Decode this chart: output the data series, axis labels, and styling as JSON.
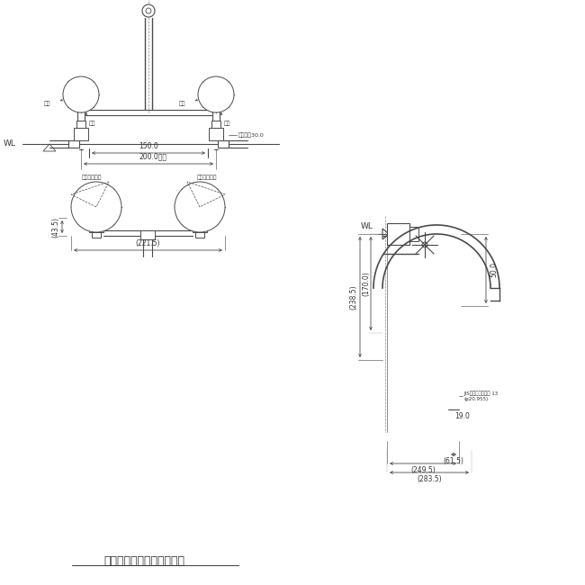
{
  "bg_color": "#ffffff",
  "line_color": "#4a4a4a",
  "text_color": "#333333",
  "title_text": "取付芯々２００ｍｍの場合",
  "wl_label": "WL",
  "dim_200": "200.0内外",
  "dim_150": "150.0",
  "dim_30": "大角対辺30.0",
  "dim_221": "(221.5)",
  "dim_43": "(43.5)",
  "dim_238": "(238.5)",
  "dim_170": "(170.0)",
  "dim_249": "(249.5)",
  "dim_283": "(283.5)",
  "dim_61": "(61.5)",
  "dim_50": "50.0",
  "dim_19": "19.0",
  "label_hot": "温水ハンドル",
  "label_cold": "水側ハンドル",
  "label_jis": "JIS給水栖取付ねじ 13\n(φ20.955)",
  "label_stop": "止水",
  "label_discharge": "吐水"
}
